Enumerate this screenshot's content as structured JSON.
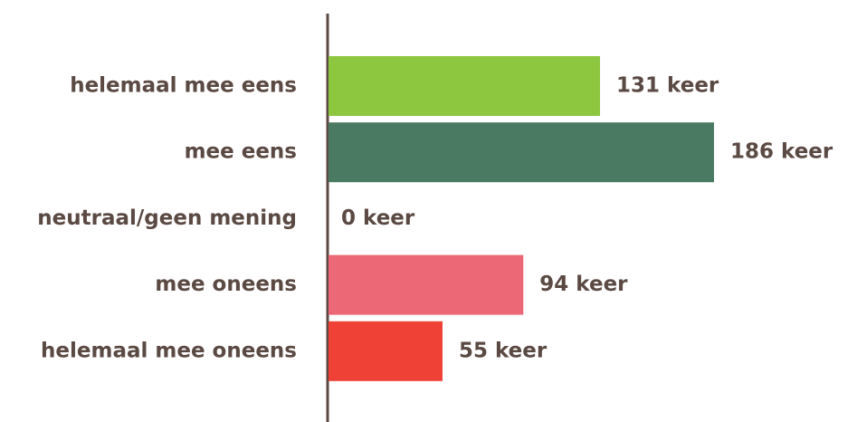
{
  "chart_data": {
    "type": "hbar",
    "categories": [
      "helemaal mee eens",
      "mee eens",
      "neutraal/geen mening",
      "mee oneens",
      "helemaal mee oneens"
    ],
    "values": [
      131,
      186,
      0,
      94,
      55
    ],
    "value_labels": [
      "131 keer",
      "186 keer",
      "0 keer",
      "94 keer",
      "55 keer"
    ],
    "colors": [
      "#8dc63f",
      "#4a7a62",
      "#9e9e9e",
      "#ec6877",
      "#ef4136"
    ]
  }
}
